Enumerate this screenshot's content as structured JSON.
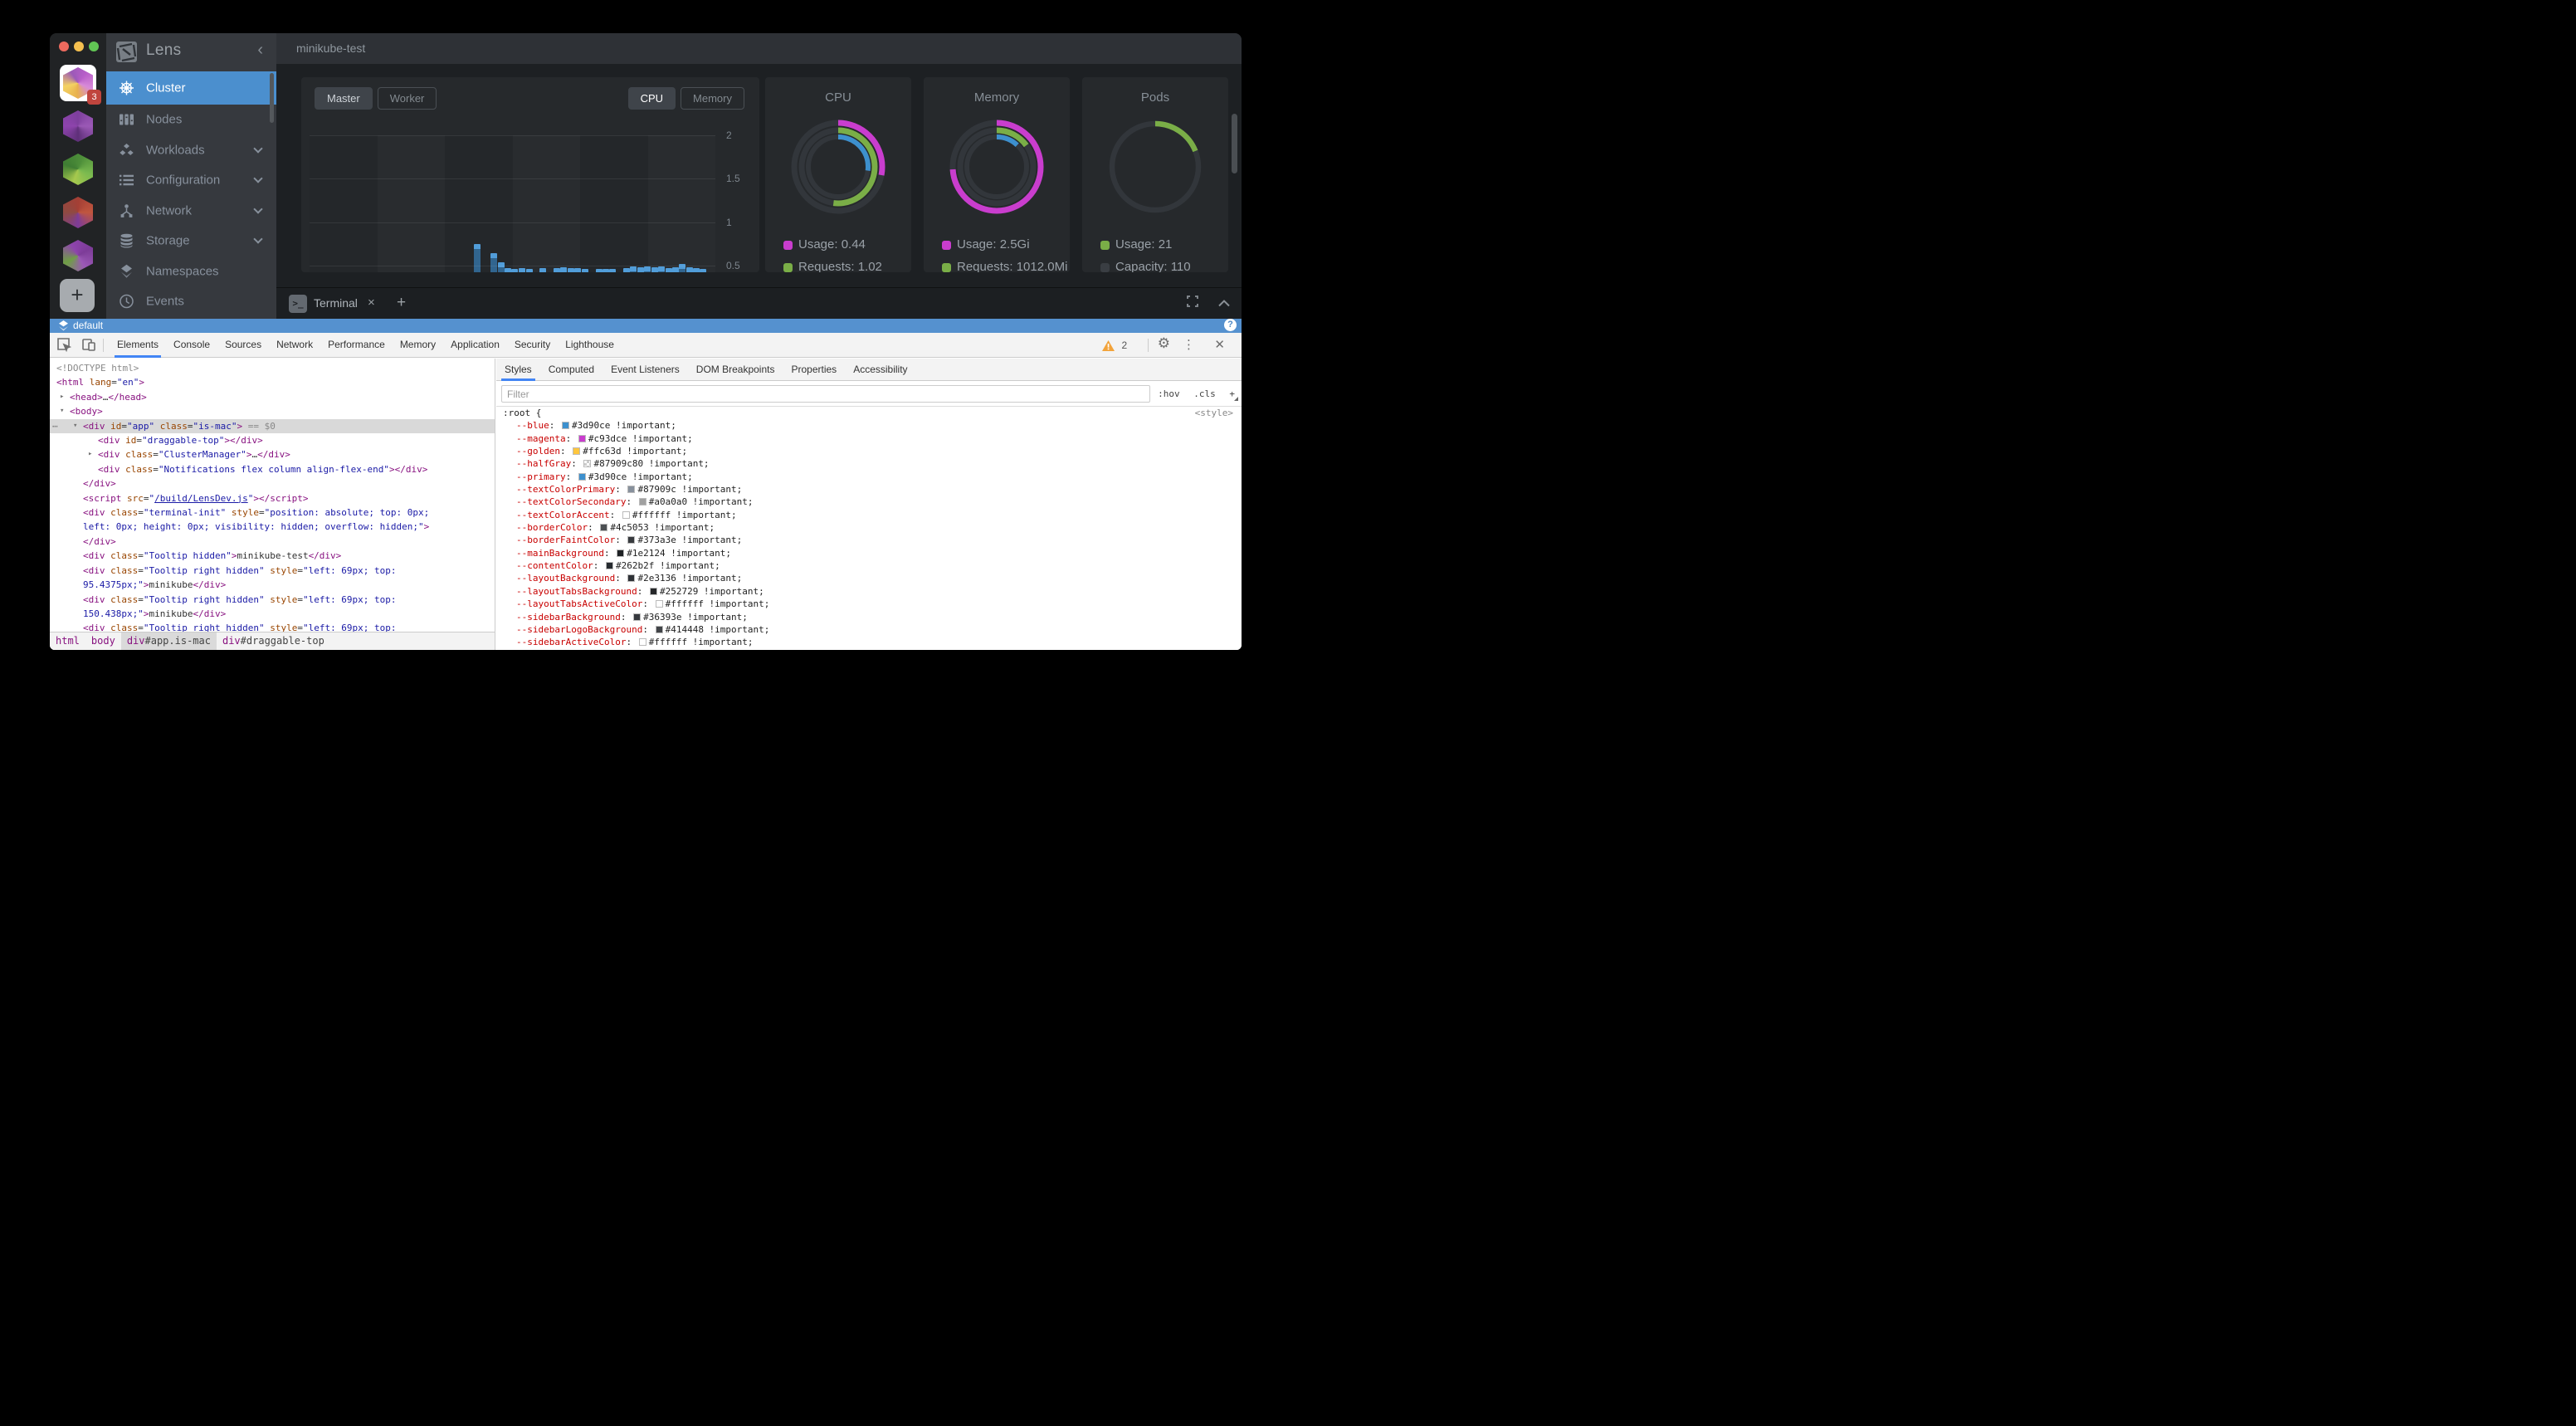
{
  "lens": {
    "topbar": {
      "title": "minikube-test"
    },
    "sidebar": {
      "title": "Lens",
      "collapse_icon": "‹",
      "items": [
        {
          "label": "Cluster",
          "icon": "helm-wheel-icon",
          "active": true
        },
        {
          "label": "Nodes",
          "icon": "nodes-icon"
        },
        {
          "label": "Workloads",
          "icon": "workloads-icon",
          "chevron": true
        },
        {
          "label": "Configuration",
          "icon": "configuration-icon",
          "chevron": true
        },
        {
          "label": "Network",
          "icon": "network-icon",
          "chevron": true
        },
        {
          "label": "Storage",
          "icon": "storage-icon",
          "chevron": true
        },
        {
          "label": "Namespaces",
          "icon": "namespaces-icon"
        },
        {
          "label": "Events",
          "icon": "events-icon"
        }
      ]
    },
    "rail": {
      "clusters": [
        {
          "variant": "c1",
          "white_tile": true,
          "badge": "3"
        },
        {
          "variant": "c2"
        },
        {
          "variant": "c3"
        },
        {
          "variant": "c4"
        },
        {
          "variant": "c5"
        }
      ],
      "add_label": "+"
    },
    "toolbar": {
      "node_tabs": [
        {
          "label": "Master",
          "active": true
        },
        {
          "label": "Worker"
        }
      ],
      "metric_tabs": [
        {
          "label": "CPU",
          "active": true
        },
        {
          "label": "Memory"
        }
      ]
    },
    "dock": {
      "terminal_label": "Terminal",
      "close_label": "×",
      "add_label": "+"
    },
    "statusbar": {
      "namespace": "default",
      "help_label": "?"
    }
  },
  "chart_data": [
    {
      "type": "bar",
      "title": "Master node CPU cores usage over time",
      "ylim": [
        0,
        2
      ],
      "yticks": [
        "2",
        "1.5",
        "1",
        "0.5"
      ],
      "grid": true,
      "bar_color": "#3d90ce",
      "points": [
        [
          0.412,
          0.75
        ],
        [
          0.455,
          0.64
        ],
        [
          0.472,
          0.54
        ],
        [
          0.489,
          0.475
        ],
        [
          0.507,
          0.465
        ],
        [
          0.525,
          0.468
        ],
        [
          0.543,
          0.462
        ],
        [
          0.578,
          0.468
        ],
        [
          0.613,
          0.472
        ],
        [
          0.63,
          0.478
        ],
        [
          0.648,
          0.47
        ],
        [
          0.665,
          0.47
        ],
        [
          0.683,
          0.464
        ],
        [
          0.718,
          0.463
        ],
        [
          0.735,
          0.458
        ],
        [
          0.753,
          0.462
        ],
        [
          0.788,
          0.47
        ],
        [
          0.805,
          0.49
        ],
        [
          0.823,
          0.484
        ],
        [
          0.84,
          0.49
        ],
        [
          0.858,
          0.48
        ],
        [
          0.875,
          0.486
        ],
        [
          0.893,
          0.476
        ],
        [
          0.91,
          0.48
        ],
        [
          0.928,
          0.52
        ],
        [
          0.945,
          0.482
        ],
        [
          0.963,
          0.468
        ],
        [
          0.98,
          0.462
        ]
      ]
    },
    {
      "type": "donut",
      "title": "CPU",
      "rings": [
        {
          "fraction": 0.28,
          "color": "#c93dce"
        },
        {
          "fraction": 0.52,
          "color": "#7aae47"
        },
        {
          "fraction": 0.27,
          "color": "#3d90ce"
        }
      ],
      "legend": [
        {
          "label": "Usage: 0.44",
          "color": "#c93dce"
        },
        {
          "label": "Requests: 1.02",
          "color": "#7aae47"
        }
      ]
    },
    {
      "type": "donut",
      "title": "Memory",
      "rings": [
        {
          "fraction": 0.74,
          "color": "#c93dce"
        },
        {
          "fraction": 0.15,
          "color": "#7aae47"
        },
        {
          "fraction": 0.12,
          "color": "#3d90ce"
        }
      ],
      "legend": [
        {
          "label": "Usage: 2.5Gi",
          "color": "#c93dce"
        },
        {
          "label": "Requests: 1012.0Mi",
          "color": "#7aae47"
        }
      ]
    },
    {
      "type": "donut",
      "title": "Pods",
      "rings": [
        {
          "fraction": 0.19,
          "color": "#7aae47"
        }
      ],
      "legend": [
        {
          "label": "Usage: 21",
          "color": "#7aae47"
        },
        {
          "label": "Capacity: 110",
          "color": "#3a3e43"
        }
      ]
    }
  ],
  "devtools": {
    "tabs": [
      "Elements",
      "Console",
      "Sources",
      "Network",
      "Performance",
      "Memory",
      "Application",
      "Security",
      "Lighthouse"
    ],
    "active_tab": "Elements",
    "warning_count": "2",
    "panel_tabs": [
      "Styles",
      "Computed",
      "Event Listeners",
      "DOM Breakpoints",
      "Properties",
      "Accessibility"
    ],
    "active_panel_tab": "Styles",
    "filter_placeholder": "Filter",
    "hov_label": ":hov",
    "cls_label": ".cls",
    "add_label": "+",
    "style_tag_label": "<style>",
    "css_selector": ":root {",
    "css_vars": [
      {
        "name": "--blue",
        "value": "#3d90ce !important;",
        "swatch": "#3d90ce"
      },
      {
        "name": "--magenta",
        "value": "#c93dce !important;",
        "swatch": "#c93dce"
      },
      {
        "name": "--golden",
        "value": "#ffc63d !important;",
        "swatch": "#ffc63d"
      },
      {
        "name": "--halfGray",
        "value": "#87909c80 !important;",
        "swatch": "#87909c80",
        "checker": true
      },
      {
        "name": "--primary",
        "value": "#3d90ce !important;",
        "swatch": "#3d90ce"
      },
      {
        "name": "--textColorPrimary",
        "value": "#87909c !important;",
        "swatch": "#87909c"
      },
      {
        "name": "--textColorSecondary",
        "value": "#a0a0a0 !important;",
        "swatch": "#a0a0a0"
      },
      {
        "name": "--textColorAccent",
        "value": "#ffffff !important;",
        "swatch": "#ffffff"
      },
      {
        "name": "--borderColor",
        "value": "#4c5053 !important;",
        "swatch": "#4c5053"
      },
      {
        "name": "--borderFaintColor",
        "value": "#373a3e !important;",
        "swatch": "#373a3e"
      },
      {
        "name": "--mainBackground",
        "value": "#1e2124 !important;",
        "swatch": "#1e2124"
      },
      {
        "name": "--contentColor",
        "value": "#262b2f !important;",
        "swatch": "#262b2f"
      },
      {
        "name": "--layoutBackground",
        "value": "#2e3136 !important;",
        "swatch": "#2e3136"
      },
      {
        "name": "--layoutTabsBackground",
        "value": "#252729 !important;",
        "swatch": "#252729"
      },
      {
        "name": "--layoutTabsActiveColor",
        "value": "#ffffff !important;",
        "swatch": "#ffffff"
      },
      {
        "name": "--sidebarBackground",
        "value": "#36393e !important;",
        "swatch": "#36393e"
      },
      {
        "name": "--sidebarLogoBackground",
        "value": "#414448 !important;",
        "swatch": "#414448"
      },
      {
        "name": "--sidebarActiveColor",
        "value": "#ffffff !important;",
        "swatch": "#ffffff"
      }
    ],
    "elements_tree": [
      {
        "ind": 0,
        "t": [
          [
            "g",
            "<!DOCTYPE html>"
          ]
        ]
      },
      {
        "ind": 0,
        "t": [
          [
            "t",
            "<html"
          ],
          [
            "d",
            " "
          ],
          [
            "a",
            "lang"
          ],
          [
            "d",
            "="
          ],
          [
            "v",
            "\"en\""
          ],
          [
            "t",
            ">"
          ]
        ]
      },
      {
        "ind": 1,
        "arrow": "▸",
        "t": [
          [
            "t",
            "<head>"
          ],
          [
            "d",
            "…"
          ],
          [
            "t",
            "</head>"
          ]
        ]
      },
      {
        "ind": 1,
        "arrow": "▾",
        "t": [
          [
            "t",
            "<body>"
          ]
        ]
      },
      {
        "ind": 2,
        "arrow": "▾",
        "gutter": "⋯",
        "selected": true,
        "t": [
          [
            "t",
            "<div"
          ],
          [
            "d",
            " "
          ],
          [
            "a",
            "id"
          ],
          [
            "d",
            "="
          ],
          [
            "v",
            "\"app\""
          ],
          [
            "d",
            " "
          ],
          [
            "a",
            "class"
          ],
          [
            "d",
            "="
          ],
          [
            "v",
            "\"is-mac\""
          ],
          [
            "t",
            ">"
          ],
          [
            "g",
            " == $0"
          ]
        ]
      },
      {
        "ind": 3,
        "t": [
          [
            "t",
            "<div"
          ],
          [
            "d",
            " "
          ],
          [
            "a",
            "id"
          ],
          [
            "d",
            "="
          ],
          [
            "v",
            "\"draggable-top\""
          ],
          [
            "t",
            "></div>"
          ]
        ]
      },
      {
        "ind": 3,
        "arrow": "▸",
        "t": [
          [
            "t",
            "<div"
          ],
          [
            "d",
            " "
          ],
          [
            "a",
            "class"
          ],
          [
            "d",
            "="
          ],
          [
            "v",
            "\"ClusterManager\""
          ],
          [
            "t",
            ">"
          ],
          [
            "d",
            "…"
          ],
          [
            "t",
            "</div>"
          ]
        ]
      },
      {
        "ind": 3,
        "t": [
          [
            "t",
            "<div"
          ],
          [
            "d",
            " "
          ],
          [
            "a",
            "class"
          ],
          [
            "d",
            "="
          ],
          [
            "v",
            "\"Notifications flex column align-flex-end\""
          ],
          [
            "t",
            "></div>"
          ]
        ]
      },
      {
        "ind": 2,
        "t": [
          [
            "t",
            "</div>"
          ]
        ]
      },
      {
        "ind": 2,
        "t": [
          [
            "t",
            "<script"
          ],
          [
            "d",
            " "
          ],
          [
            "a",
            "src"
          ],
          [
            "d",
            "="
          ],
          [
            "v",
            "\""
          ],
          [
            "lk",
            "/build/LensDev.js"
          ],
          [
            "v",
            "\""
          ],
          [
            "t",
            "></script>"
          ]
        ]
      },
      {
        "ind": 2,
        "t": [
          [
            "t",
            "<div"
          ],
          [
            "d",
            " "
          ],
          [
            "a",
            "class"
          ],
          [
            "d",
            "="
          ],
          [
            "v",
            "\"terminal-init\""
          ],
          [
            "d",
            " "
          ],
          [
            "a",
            "style"
          ],
          [
            "d",
            "="
          ],
          [
            "v",
            "\"position: absolute; top: 0px;"
          ]
        ]
      },
      {
        "ind": 2,
        "t": [
          [
            "v",
            "left: 0px; height: 0px; visibility: hidden; overflow: hidden;\""
          ],
          [
            "t",
            ">"
          ]
        ]
      },
      {
        "ind": 2,
        "t": [
          [
            "t",
            "</div>"
          ]
        ]
      },
      {
        "ind": 2,
        "t": [
          [
            "t",
            "<div"
          ],
          [
            "d",
            " "
          ],
          [
            "a",
            "class"
          ],
          [
            "d",
            "="
          ],
          [
            "v",
            "\"Tooltip hidden\""
          ],
          [
            "t",
            ">"
          ],
          [
            "d",
            "minikube-test"
          ],
          [
            "t",
            "</div>"
          ]
        ]
      },
      {
        "ind": 2,
        "t": [
          [
            "t",
            "<div"
          ],
          [
            "d",
            " "
          ],
          [
            "a",
            "class"
          ],
          [
            "d",
            "="
          ],
          [
            "v",
            "\"Tooltip right hidden\""
          ],
          [
            "d",
            " "
          ],
          [
            "a",
            "style"
          ],
          [
            "d",
            "="
          ],
          [
            "v",
            "\"left: 69px; top:"
          ]
        ]
      },
      {
        "ind": 2,
        "t": [
          [
            "v",
            "95.4375px;\""
          ],
          [
            "t",
            ">"
          ],
          [
            "d",
            "minikube"
          ],
          [
            "t",
            "</div>"
          ]
        ]
      },
      {
        "ind": 2,
        "t": [
          [
            "t",
            "<div"
          ],
          [
            "d",
            " "
          ],
          [
            "a",
            "class"
          ],
          [
            "d",
            "="
          ],
          [
            "v",
            "\"Tooltip right hidden\""
          ],
          [
            "d",
            " "
          ],
          [
            "a",
            "style"
          ],
          [
            "d",
            "="
          ],
          [
            "v",
            "\"left: 69px; top:"
          ]
        ]
      },
      {
        "ind": 2,
        "t": [
          [
            "v",
            "150.438px;\""
          ],
          [
            "t",
            ">"
          ],
          [
            "d",
            "minikube"
          ],
          [
            "t",
            "</div>"
          ]
        ]
      },
      {
        "ind": 2,
        "t": [
          [
            "t",
            "<div"
          ],
          [
            "d",
            " "
          ],
          [
            "a",
            "class"
          ],
          [
            "d",
            "="
          ],
          [
            "v",
            "\"Tooltip right hidden\""
          ],
          [
            "d",
            " "
          ],
          [
            "a",
            "style"
          ],
          [
            "d",
            "="
          ],
          [
            "v",
            "\"left: 69px; top:"
          ]
        ]
      }
    ],
    "breadcrumb": [
      {
        "tag": "html"
      },
      {
        "tag": "body"
      },
      {
        "tag": "div",
        "suffix": "#app.is-mac",
        "active": true
      },
      {
        "tag": "div",
        "suffix": "#draggable-top"
      }
    ]
  }
}
